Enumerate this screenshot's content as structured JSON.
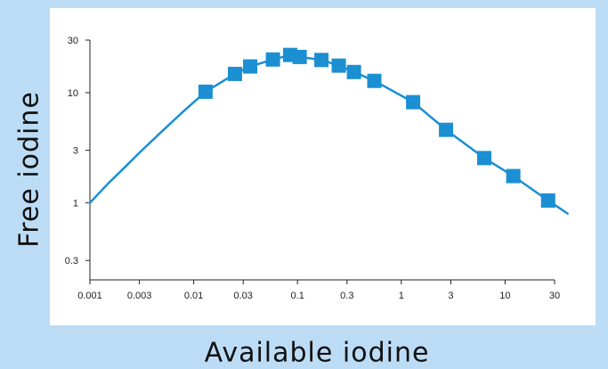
{
  "chart_data": {
    "type": "scatter",
    "xlabel": "Available iodine",
    "ylabel": "Free iodine",
    "xscale": "log",
    "yscale": "log",
    "xlim": [
      0.001,
      30
    ],
    "ylim": [
      0.2,
      30
    ],
    "grid": false,
    "x_ticks": [
      0.001,
      0.003,
      0.01,
      0.03,
      0.1,
      0.3,
      1,
      3,
      10,
      30
    ],
    "x_tick_labels": [
      "0.001",
      "0.003",
      "0.01",
      "0.03",
      "0.1",
      "0.3",
      "1",
      "3",
      "10",
      "30"
    ],
    "y_ticks": [
      0.3,
      1,
      3,
      10,
      30
    ],
    "y_tick_labels": [
      "0.3",
      "1",
      "3",
      "10",
      "30"
    ],
    "series": [
      {
        "kind": "points",
        "marker": "square",
        "color": "#1b8fd2",
        "x": [
          0.013,
          0.025,
          0.035,
          0.058,
          0.085,
          0.105,
          0.17,
          0.25,
          0.35,
          0.55,
          1.3,
          2.7,
          6.3,
          12,
          26
        ],
        "y": [
          10.2,
          14.8,
          17.3,
          20,
          22,
          21.1,
          19.8,
          17.6,
          15.4,
          12.8,
          8.2,
          4.6,
          2.55,
          1.75,
          1.05
        ]
      },
      {
        "kind": "line",
        "color": "#1b8fd2",
        "x": [
          0.001,
          0.0015,
          0.002,
          0.003,
          0.005,
          0.008,
          0.013,
          0.025,
          0.035,
          0.058,
          0.085,
          0.105,
          0.17,
          0.25,
          0.35,
          0.55,
          1.3,
          2.7,
          6.3,
          12,
          26,
          40
        ],
        "y": [
          1.0,
          1.5,
          1.95,
          2.85,
          4.5,
          6.8,
          10.2,
          14.8,
          17.3,
          20,
          22,
          21.1,
          19.8,
          17.6,
          15.4,
          12.8,
          8.2,
          4.6,
          2.55,
          1.75,
          1.05,
          0.8
        ]
      }
    ]
  }
}
